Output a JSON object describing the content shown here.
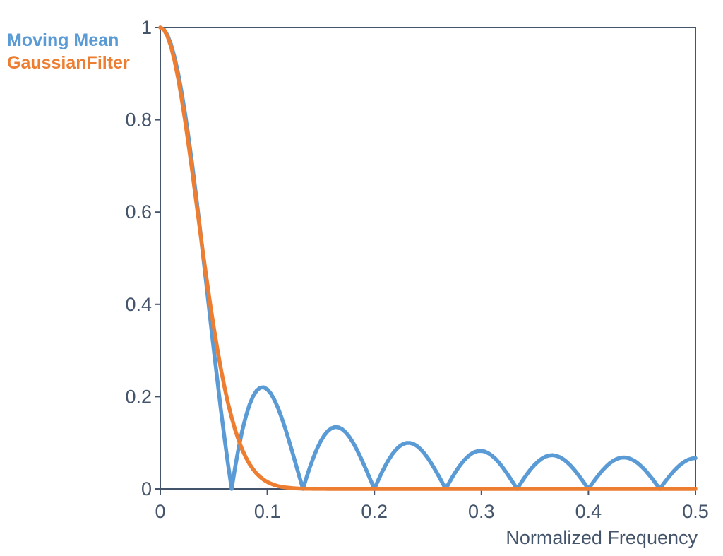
{
  "chart_data": {
    "type": "line",
    "title": "",
    "xlabel": "Normalized Frequency",
    "ylabel": "",
    "xlim": [
      0,
      0.5
    ],
    "ylim": [
      0,
      1
    ],
    "x_ticks": [
      0,
      0.1,
      0.2,
      0.3,
      0.4,
      0.5
    ],
    "x_tick_labels": [
      "0",
      "0.1",
      "0.2",
      "0.3",
      "0.4",
      "0.5"
    ],
    "y_ticks": [
      0,
      0.2,
      0.4,
      0.6,
      0.8,
      1
    ],
    "y_tick_labels": [
      "0",
      "0.2",
      "0.4",
      "0.6",
      "0.8",
      "1"
    ],
    "grid": false,
    "legend_position": "top-left-outside",
    "axis_color": "#44546A",
    "background": "#FFFFFF",
    "x_start": 0,
    "x_step": 0.0033333333,
    "series": [
      {
        "name": "Moving Mean",
        "color": "#5B9BD5",
        "values": [
          1,
          0.9959,
          0.9837,
          0.9636,
          0.9358,
          0.9007,
          0.8589,
          0.8111,
          0.7577,
          0.6997,
          0.6378,
          0.5729,
          0.5059,
          0.4377,
          0.3692,
          0.3013,
          0.235,
          0.1709,
          0.1099,
          0.0528,
          0,
          0.0478,
          0.0902,
          0.1269,
          0.1576,
          0.1821,
          0.2006,
          0.2129,
          0.2194,
          0.2202,
          0.2157,
          0.2064,
          0.1928,
          0.1754,
          0.1547,
          0.1315,
          0.1064,
          0.0801,
          0.0532,
          0.0263,
          0,
          0.0251,
          0.0484,
          0.0695,
          0.0881,
          0.1038,
          0.1164,
          0.1257,
          0.1316,
          0.1341,
          0.1333,
          0.1293,
          0.1224,
          0.1127,
          0.1007,
          0.0866,
          0.0708,
          0.0538,
          0.0361,
          0.018,
          0,
          0.0175,
          0.0341,
          0.0494,
          0.0631,
          0.0749,
          0.0846,
          0.092,
          0.097,
          0.0996,
          0.0996,
          0.0973,
          0.0926,
          0.0858,
          0.0771,
          0.0667,
          0.0548,
          0.0419,
          0.0283,
          0.0142,
          0,
          0.0139,
          0.0272,
          0.0396,
          0.0509,
          0.0607,
          0.0688,
          0.0752,
          0.0796,
          0.082,
          0.0824,
          0.0808,
          0.0772,
          0.0718,
          0.0648,
          0.0562,
          0.0464,
          0.0356,
          0.0241,
          0.0121,
          0,
          0.012,
          0.0235,
          0.0343,
          0.0442,
          0.0529,
          0.0602,
          0.066,
          0.0701,
          0.0724,
          0.073,
          0.0717,
          0.0688,
          0.0642,
          0.058,
          0.0505,
          0.0418,
          0.0322,
          0.0218,
          0.011,
          0,
          0.0109,
          0.0215,
          0.0315,
          0.0407,
          0.0488,
          0.0557,
          0.0612,
          0.0651,
          0.0675,
          0.0682,
          0.0672,
          0.0645,
          0.0604,
          0.0547,
          0.0477,
          0.0396,
          0.0305,
          0.0208,
          0.0105,
          0,
          0.0105,
          0.0207,
          0.0303,
          0.0393,
          0.0472,
          0.054,
          0.0594,
          0.0634,
          0.0659,
          0.0667
        ]
      },
      {
        "name": "GaussianFilter",
        "color": "#ED7D31",
        "values": [
          1,
          0.9953,
          0.9815,
          0.9589,
          0.9281,
          0.8899,
          0.8454,
          0.7958,
          0.742,
          0.6855,
          0.6272,
          0.5683,
          0.5107,
          0.4545,
          0.4007,
          0.3499,
          0.3028,
          0.2596,
          0.2205,
          0.1855,
          0.1546,
          0.1277,
          0.1045,
          0.0847,
          0.068,
          0.0541,
          0.0427,
          0.0333,
          0.0257,
          0.0197,
          0.015,
          0.0113,
          0.0084,
          0.0062,
          0.0045,
          0.0033,
          0.0024,
          0.0017,
          0.0012,
          0.0008,
          0.0006,
          0.0004,
          0.0003,
          0.0002,
          0.0001,
          0.0001,
          0.0001,
          0,
          0,
          0,
          0,
          0,
          0,
          0,
          0,
          0,
          0,
          0,
          0,
          0,
          0,
          0,
          0,
          0,
          0,
          0,
          0,
          0,
          0,
          0,
          0,
          0,
          0,
          0,
          0,
          0,
          0,
          0,
          0,
          0,
          0,
          0,
          0,
          0,
          0,
          0,
          0,
          0,
          0,
          0,
          0,
          0,
          0,
          0,
          0,
          0,
          0,
          0,
          0,
          0,
          0,
          0,
          0,
          0,
          0,
          0,
          0,
          0,
          0,
          0,
          0,
          0,
          0,
          0,
          0,
          0,
          0,
          0,
          0,
          0,
          0,
          0,
          0,
          0,
          0,
          0,
          0,
          0,
          0,
          0,
          0,
          0,
          0,
          0,
          0,
          0,
          0,
          0,
          0,
          0,
          0,
          0,
          0,
          0,
          0,
          0,
          0,
          0,
          0,
          0,
          0
        ]
      }
    ]
  },
  "legend": {
    "items": [
      {
        "label": "Moving Mean",
        "color": "#5B9BD5"
      },
      {
        "label": "GaussianFilter",
        "color": "#ED7D31"
      }
    ]
  }
}
